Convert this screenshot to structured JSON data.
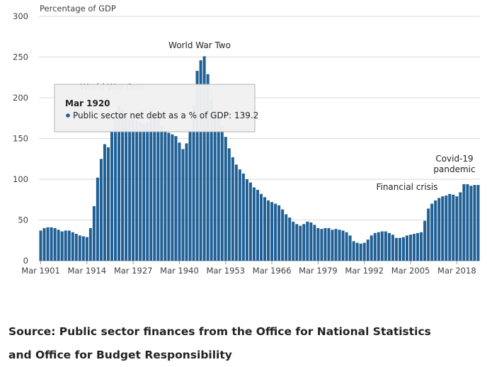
{
  "chart_data": {
    "type": "bar",
    "y_axis_label": "Percentage of GDP",
    "categories": [
      "Mar 1901",
      null,
      null,
      null,
      null,
      null,
      null,
      null,
      null,
      null,
      null,
      null,
      null,
      "Mar 1914",
      null,
      null,
      null,
      null,
      null,
      "Mar 1920",
      null,
      null,
      null,
      null,
      null,
      null,
      "Mar 1927",
      null,
      null,
      null,
      null,
      null,
      null,
      null,
      null,
      null,
      null,
      null,
      null,
      "Mar 1940",
      null,
      null,
      null,
      null,
      null,
      null,
      null,
      null,
      null,
      null,
      null,
      null,
      "Mar 1953",
      null,
      null,
      null,
      null,
      null,
      null,
      null,
      null,
      null,
      null,
      null,
      null,
      "Mar 1966",
      null,
      null,
      null,
      null,
      null,
      null,
      null,
      null,
      null,
      null,
      null,
      null,
      "Mar 1979",
      null,
      null,
      null,
      null,
      null,
      null,
      null,
      null,
      null,
      null,
      null,
      null,
      "Mar 1992",
      null,
      null,
      null,
      null,
      null,
      null,
      null,
      null,
      null,
      null,
      null,
      null,
      "Mar 2005",
      null,
      null,
      null,
      null,
      null,
      null,
      null,
      null,
      null,
      null,
      null,
      null,
      "Mar 2018",
      null,
      null,
      null,
      null,
      null,
      null
    ],
    "series": [
      {
        "name": "Public sector net debt as a % of GDP",
        "color": "#206095",
        "values": [
          37,
          40,
          41,
          41,
          40,
          38,
          36,
          37,
          37,
          35,
          33,
          31,
          30,
          29,
          40,
          67,
          102,
          125,
          143,
          139.2,
          160,
          182,
          190,
          185,
          178,
          172,
          175,
          172,
          170,
          168,
          170,
          175,
          178,
          172,
          165,
          160,
          157,
          155,
          153,
          145,
          137,
          144,
          160,
          190,
          233,
          246,
          251,
          229,
          198,
          185,
          176,
          165,
          152,
          138,
          127,
          118,
          112,
          107,
          100,
          96,
          90,
          87,
          82,
          78,
          74,
          72,
          70,
          68,
          63,
          57,
          53,
          48,
          45,
          43,
          45,
          48,
          47,
          44,
          40,
          39,
          40,
          40,
          38,
          39,
          38,
          37,
          35,
          31,
          24,
          22,
          21,
          22,
          26,
          31,
          34,
          35,
          36,
          36,
          34,
          32,
          28,
          28,
          29,
          31,
          32,
          33,
          34,
          35,
          49,
          64,
          70,
          74,
          77,
          79,
          80,
          82,
          81,
          79,
          84,
          94,
          94,
          92,
          93,
          93
        ]
      }
    ],
    "ylim": [
      0,
      300
    ],
    "yticks": [
      0,
      50,
      100,
      150,
      200,
      250,
      300
    ],
    "grid": true,
    "annotations": [
      {
        "lines": [
          "World War One"
        ]
      },
      {
        "lines": [
          "World War Two"
        ]
      },
      {
        "lines": [
          "Financial crisis"
        ]
      },
      {
        "lines": [
          "Covid-19",
          "pandemic"
        ]
      }
    ],
    "tooltip_label": "Public sector net debt as a % of GDP:"
  },
  "source": "Source: Public sector finances from the Office for National Statistics and Office for Budget Responsibility"
}
